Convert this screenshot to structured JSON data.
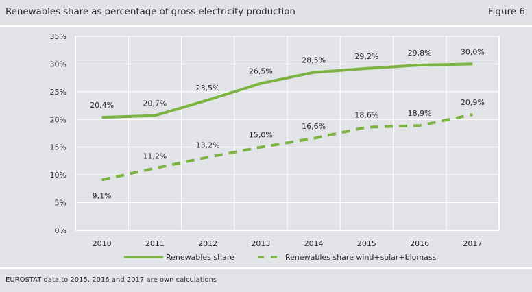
{
  "header": {
    "title": "Renewables share as percentage of gross electricity production",
    "figure_label": "Figure 6"
  },
  "footer": {
    "note": "EUROSTAT data to 2015, 2016 and 2017 are own calculations"
  },
  "colors": {
    "series_line": "#7cb342",
    "background": "#e3e4e8",
    "grid": "#ffffff"
  },
  "chart_data": {
    "type": "line",
    "title": "Renewables share as percentage of gross electricity production",
    "xlabel": "",
    "ylabel": "",
    "categories": [
      "2010",
      "2011",
      "2012",
      "2013",
      "2014",
      "2015",
      "2016",
      "2017"
    ],
    "ylim": [
      0,
      35
    ],
    "yticks": [
      0,
      5,
      10,
      15,
      20,
      25,
      30,
      35
    ],
    "ytick_labels": [
      "0%",
      "5%",
      "10%",
      "15%",
      "20%",
      "25%",
      "30%",
      "35%"
    ],
    "grid": true,
    "legend_position": "bottom",
    "series": [
      {
        "name": "Renewables share",
        "style": "solid",
        "values": [
          20.4,
          20.7,
          23.5,
          26.5,
          28.5,
          29.2,
          29.8,
          30.0
        ],
        "labels": [
          "20,4%",
          "20,7%",
          "23,5%",
          "26,5%",
          "28,5%",
          "29,2%",
          "29,8%",
          "30,0%"
        ]
      },
      {
        "name": "Renewables share wind+solar+biomass",
        "style": "dashed",
        "values": [
          9.1,
          11.2,
          13.2,
          15.0,
          16.6,
          18.6,
          18.9,
          20.9
        ],
        "labels": [
          "9,1%",
          "11,2%",
          "13,2%",
          "15,0%",
          "16,6%",
          "18,6%",
          "18,9%",
          "20,9%"
        ]
      }
    ]
  }
}
